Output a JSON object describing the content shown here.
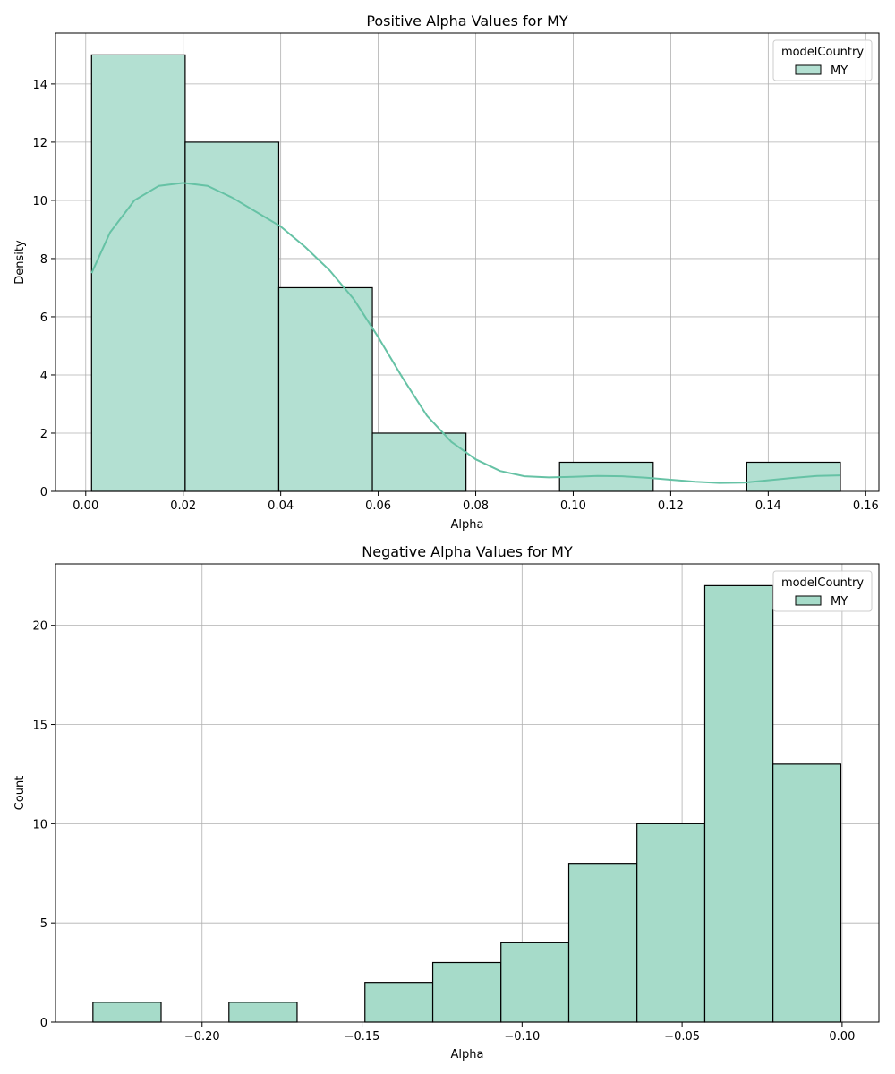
{
  "colors": {
    "bar_fill": "#b3e0d2",
    "bar_fill_2": "#a6dbc9",
    "bar_edge": "#000000",
    "kde_line": "#66c2a5",
    "grid": "#b0b0b0",
    "axes_edge": "#000000",
    "legend_edge": "#cccccc"
  },
  "chart_data": [
    {
      "type": "bar",
      "title": "Positive Alpha Values for MY",
      "xlabel": "Alpha",
      "ylabel": "Density",
      "xlim": [
        -0.0062,
        0.1627
      ],
      "ylim": [
        0,
        15.75
      ],
      "xticks": [
        0.0,
        0.02,
        0.04,
        0.06,
        0.08,
        0.1,
        0.12,
        0.14,
        0.16
      ],
      "xtick_labels": [
        "0.00",
        "0.02",
        "0.04",
        "0.06",
        "0.08",
        "0.10",
        "0.12",
        "0.14",
        "0.16"
      ],
      "yticks": [
        0,
        2,
        4,
        6,
        8,
        10,
        12,
        14
      ],
      "ytick_labels": [
        "0",
        "2",
        "4",
        "6",
        "8",
        "10",
        "12",
        "14"
      ],
      "bins": [
        {
          "x0": 0.0012,
          "x1": 0.0204,
          "value": 15
        },
        {
          "x0": 0.0204,
          "x1": 0.0396,
          "value": 12
        },
        {
          "x0": 0.0396,
          "x1": 0.0588,
          "value": 7
        },
        {
          "x0": 0.0588,
          "x1": 0.078,
          "value": 2
        },
        {
          "x0": 0.0972,
          "x1": 0.1164,
          "value": 1
        },
        {
          "x0": 0.1356,
          "x1": 0.1548,
          "value": 1
        }
      ],
      "kde": {
        "x": [
          0.0012,
          0.005,
          0.01,
          0.015,
          0.02,
          0.025,
          0.03,
          0.035,
          0.04,
          0.045,
          0.05,
          0.055,
          0.06,
          0.065,
          0.07,
          0.075,
          0.08,
          0.085,
          0.09,
          0.095,
          0.1,
          0.105,
          0.11,
          0.115,
          0.12,
          0.125,
          0.13,
          0.135,
          0.14,
          0.145,
          0.15,
          0.1548
        ],
        "y": [
          7.5,
          8.9,
          10.0,
          10.5,
          10.6,
          10.5,
          10.1,
          9.6,
          9.1,
          8.4,
          7.6,
          6.6,
          5.3,
          3.9,
          2.6,
          1.7,
          1.1,
          0.7,
          0.52,
          0.48,
          0.5,
          0.53,
          0.52,
          0.47,
          0.4,
          0.33,
          0.29,
          0.3,
          0.38,
          0.46,
          0.53,
          0.55
        ]
      },
      "legend": {
        "title": "modelCountry",
        "entries": [
          "MY"
        ],
        "placement": "top-right"
      },
      "grid": true
    },
    {
      "type": "bar",
      "title": "Negative Alpha Values for MY",
      "xlabel": "Alpha",
      "ylabel": "Count",
      "xlim": [
        -0.2458,
        0.0115
      ],
      "ylim": [
        0,
        23.1
      ],
      "xticks": [
        -0.2,
        -0.15,
        -0.1,
        -0.05,
        0.0
      ],
      "xtick_labels": [
        "−0.20",
        "−0.15",
        "−0.10",
        "−0.05",
        "0.00"
      ],
      "yticks": [
        0,
        5,
        10,
        15,
        20
      ],
      "ytick_labels": [
        "0",
        "5",
        "10",
        "15",
        "20"
      ],
      "bins": [
        {
          "x0": -0.2341,
          "x1": -0.2128,
          "value": 1
        },
        {
          "x0": -0.1916,
          "x1": -0.1703,
          "value": 1
        },
        {
          "x0": -0.1491,
          "x1": -0.1279,
          "value": 2
        },
        {
          "x0": -0.1279,
          "x1": -0.1066,
          "value": 3
        },
        {
          "x0": -0.1066,
          "x1": -0.0854,
          "value": 4
        },
        {
          "x0": -0.0854,
          "x1": -0.0641,
          "value": 8
        },
        {
          "x0": -0.0641,
          "x1": -0.0429,
          "value": 10
        },
        {
          "x0": -0.0429,
          "x1": -0.0216,
          "value": 22
        },
        {
          "x0": -0.0216,
          "x1": -0.0004,
          "value": 13
        }
      ],
      "legend": {
        "title": "modelCountry",
        "entries": [
          "MY"
        ],
        "placement": "top-right"
      },
      "grid": true
    }
  ]
}
